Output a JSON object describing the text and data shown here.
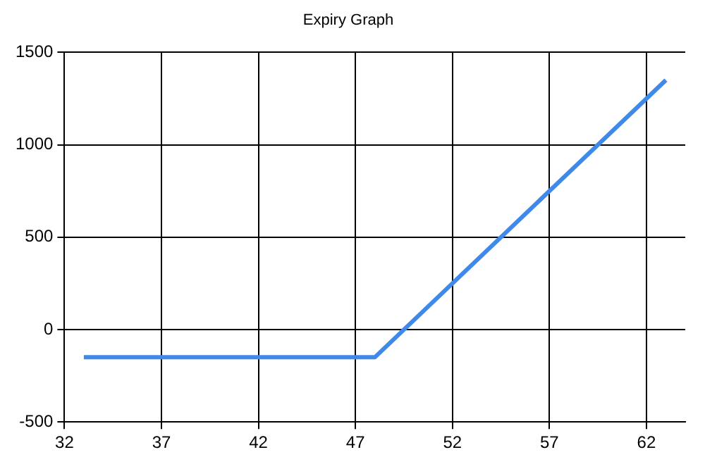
{
  "chart_data": {
    "type": "line",
    "title": "Expiry Graph",
    "x": [
      33,
      48,
      63
    ],
    "series": [
      {
        "color": "#3f8ae9",
        "values": [
          -150,
          -150,
          1350
        ]
      }
    ],
    "xlim": [
      32,
      64
    ],
    "xticks": [
      32,
      37,
      42,
      47,
      52,
      57,
      62
    ],
    "ylim": [
      -500,
      1500
    ],
    "yticks": [
      -500,
      0,
      500,
      1000,
      1500
    ],
    "grid": true,
    "legend": false,
    "marker": "none",
    "line_style": "solid"
  }
}
